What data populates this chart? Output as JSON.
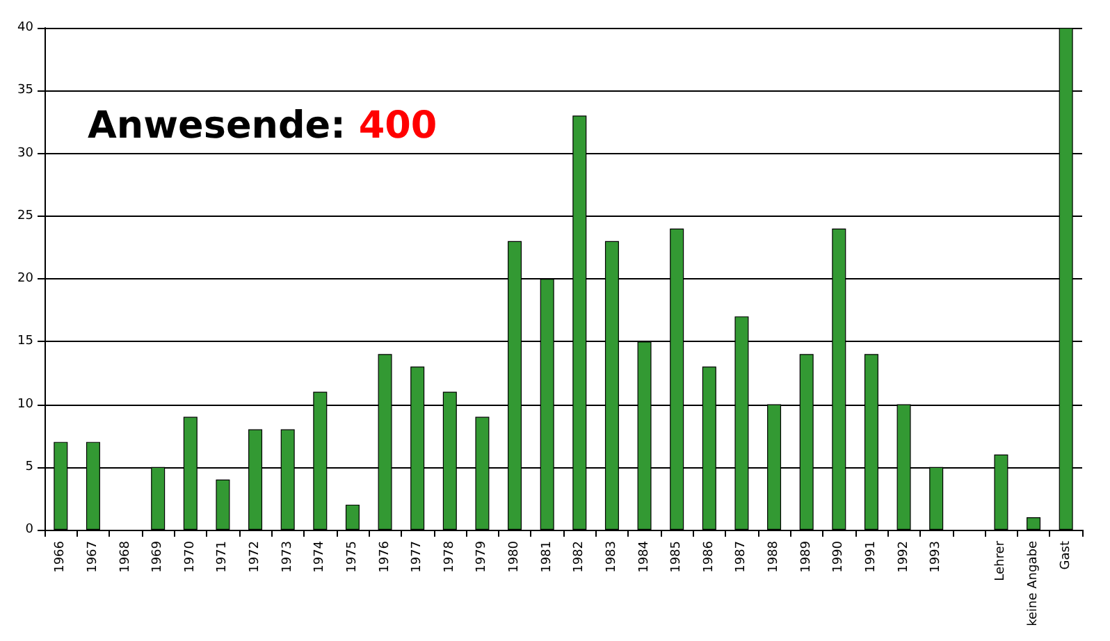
{
  "chart_data": {
    "type": "bar",
    "title": "Anwesende: 400",
    "categories": [
      "1966",
      "1967",
      "1968",
      "1969",
      "1970",
      "1971",
      "1972",
      "1973",
      "1974",
      "1975",
      "1976",
      "1977",
      "1978",
      "1979",
      "1980",
      "1981",
      "1982",
      "1983",
      "1984",
      "1985",
      "1986",
      "1987",
      "1988",
      "1989",
      "1990",
      "1991",
      "1992",
      "1993",
      null,
      "Lehrer",
      "keine Angabe",
      "Gast"
    ],
    "values": [
      7,
      7,
      0,
      5,
      9,
      4,
      8,
      8,
      11,
      2,
      14,
      13,
      11,
      9,
      23,
      20,
      33,
      23,
      15,
      24,
      13,
      17,
      10,
      14,
      24,
      14,
      10,
      5,
      null,
      6,
      1,
      40
    ],
    "color": "#339933",
    "ylim": [
      0,
      40
    ],
    "yticks": [
      0,
      5,
      10,
      15,
      20,
      25,
      30,
      35,
      40
    ],
    "grid": "y"
  }
}
